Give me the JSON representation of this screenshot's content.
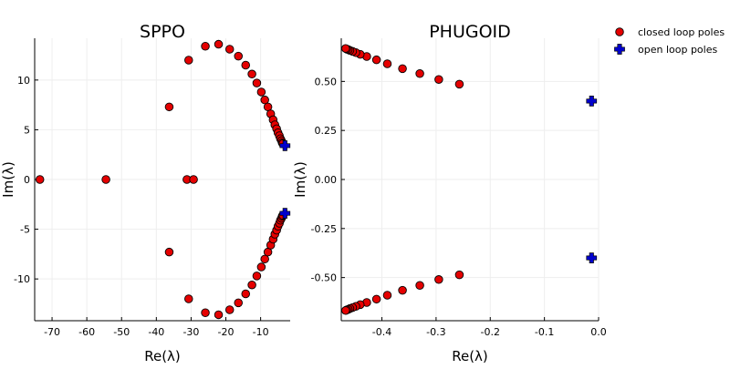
{
  "colors": {
    "closed_fill": "#e50000",
    "open_fill": "#0000cc",
    "marker_stroke": "#000000",
    "grid": "#eeeeee"
  },
  "legend": {
    "placement": "top-right",
    "closed_label": "closed loop poles",
    "open_label": "open loop poles",
    "closed_marker": "circle",
    "open_marker": "cross"
  },
  "chart_data": [
    {
      "type": "scatter",
      "title": "SPPO",
      "xlabel": "Re(λ)",
      "ylabel": "Im(λ)",
      "xlim": [
        -75,
        -1.5
      ],
      "ylim": [
        -14.2,
        14.2
      ],
      "xticks": [
        -70,
        -60,
        -50,
        -40,
        -30,
        -20,
        -10
      ],
      "xtick_labels": [
        "-70",
        "-60",
        "-50",
        "-40",
        "-30",
        "-20",
        "-10"
      ],
      "yticks": [
        -10,
        -5,
        0,
        5,
        10
      ],
      "ytick_labels": [
        "-10",
        "-5",
        "0",
        "5",
        "10"
      ],
      "grid": true,
      "series": [
        {
          "name": "closed loop poles",
          "marker": "circle",
          "points": [
            [
              -73.5,
              0
            ],
            [
              -54.5,
              0
            ],
            [
              -31.2,
              0
            ],
            [
              -29.3,
              0
            ],
            [
              -36.3,
              7.3
            ],
            [
              -36.3,
              -7.3
            ],
            [
              -30.7,
              12.0
            ],
            [
              -30.7,
              -12.0
            ],
            [
              -25.9,
              13.4
            ],
            [
              -25.9,
              -13.4
            ],
            [
              -22.1,
              13.6
            ],
            [
              -22.1,
              -13.6
            ],
            [
              -18.9,
              13.1
            ],
            [
              -18.9,
              -13.1
            ],
            [
              -16.4,
              12.4
            ],
            [
              -16.4,
              -12.4
            ],
            [
              -14.3,
              11.5
            ],
            [
              -14.3,
              -11.5
            ],
            [
              -12.5,
              10.6
            ],
            [
              -12.5,
              -10.6
            ],
            [
              -11.1,
              9.7
            ],
            [
              -11.1,
              -9.7
            ],
            [
              -9.8,
              8.8
            ],
            [
              -9.8,
              -8.8
            ],
            [
              -8.8,
              8.0
            ],
            [
              -8.8,
              -8.0
            ],
            [
              -7.9,
              7.3
            ],
            [
              -7.9,
              -7.3
            ],
            [
              -7.1,
              6.6
            ],
            [
              -7.1,
              -6.6
            ],
            [
              -6.4,
              6.0
            ],
            [
              -6.4,
              -6.0
            ],
            [
              -5.9,
              5.5
            ],
            [
              -5.9,
              -5.5
            ],
            [
              -5.4,
              5.1
            ],
            [
              -5.4,
              -5.1
            ],
            [
              -5.0,
              4.7
            ],
            [
              -5.0,
              -4.7
            ],
            [
              -4.6,
              4.4
            ],
            [
              -4.6,
              -4.4
            ],
            [
              -4.3,
              4.1
            ],
            [
              -4.3,
              -4.1
            ],
            [
              -4.0,
              3.9
            ],
            [
              -4.0,
              -3.9
            ],
            [
              -3.8,
              3.7
            ],
            [
              -3.8,
              -3.7
            ],
            [
              -3.6,
              3.6
            ],
            [
              -3.6,
              -3.6
            ]
          ]
        },
        {
          "name": "open loop poles",
          "marker": "cross",
          "points": [
            [
              -3.0,
              3.4
            ],
            [
              -3.0,
              -3.4
            ]
          ]
        }
      ]
    },
    {
      "type": "scatter",
      "title": "PHUGOID",
      "xlabel": "Re(λ)",
      "ylabel": "Im(λ)",
      "xlim": [
        -0.475,
        0.0
      ],
      "ylim": [
        -0.72,
        0.72
      ],
      "xticks": [
        -0.4,
        -0.3,
        -0.2,
        -0.1,
        0.0
      ],
      "xtick_labels": [
        "-0.4",
        "-0.3",
        "-0.2",
        "-0.1",
        "0.0"
      ],
      "yticks": [
        -0.5,
        -0.25,
        0,
        0.25,
        0.5
      ],
      "ytick_labels": [
        "-0.50",
        "-0.25",
        "0.00",
        "0.25",
        "0.50"
      ],
      "grid": true,
      "series": [
        {
          "name": "closed loop poles",
          "marker": "circle",
          "points": [
            [
              -0.257,
              0.486
            ],
            [
              -0.257,
              -0.486
            ],
            [
              -0.295,
              0.51
            ],
            [
              -0.295,
              -0.51
            ],
            [
              -0.33,
              0.54
            ],
            [
              -0.33,
              -0.54
            ],
            [
              -0.362,
              0.565
            ],
            [
              -0.362,
              -0.565
            ],
            [
              -0.39,
              0.59
            ],
            [
              -0.39,
              -0.59
            ],
            [
              -0.41,
              0.61
            ],
            [
              -0.41,
              -0.61
            ],
            [
              -0.428,
              0.627
            ],
            [
              -0.428,
              -0.627
            ],
            [
              -0.44,
              0.638
            ],
            [
              -0.44,
              -0.638
            ],
            [
              -0.448,
              0.647
            ],
            [
              -0.448,
              -0.647
            ],
            [
              -0.454,
              0.653
            ],
            [
              -0.454,
              -0.653
            ],
            [
              -0.459,
              0.658
            ],
            [
              -0.459,
              -0.658
            ],
            [
              -0.462,
              0.662
            ],
            [
              -0.462,
              -0.662
            ],
            [
              -0.465,
              0.665
            ],
            [
              -0.465,
              -0.665
            ],
            [
              -0.467,
              0.668
            ],
            [
              -0.467,
              -0.668
            ]
          ]
        },
        {
          "name": "open loop poles",
          "marker": "cross",
          "points": [
            [
              -0.013,
              0.4
            ],
            [
              -0.013,
              -0.4
            ]
          ]
        }
      ]
    }
  ]
}
